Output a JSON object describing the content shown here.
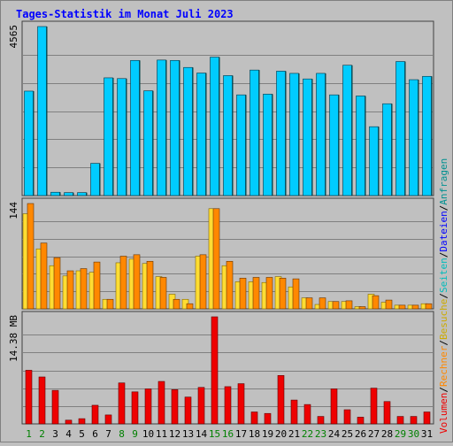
{
  "colors": {
    "background": "#c0c0c0",
    "title": "#0000ff",
    "green_day": "#008000",
    "normal_day": "#000000",
    "grid": "#808080",
    "files": "#00ccff",
    "pages": "#ffdd33",
    "visits": "#ff8800",
    "volume": "#ee0000"
  },
  "chart_data": {
    "type": "bar",
    "title": "Tages-Statistik im Monat Juli 2023",
    "categories": [
      "1",
      "2",
      "3",
      "4",
      "5",
      "6",
      "7",
      "8",
      "9",
      "10",
      "11",
      "12",
      "13",
      "14",
      "15",
      "16",
      "17",
      "18",
      "19",
      "20",
      "21",
      "22",
      "23",
      "24",
      "25",
      "26",
      "27",
      "28",
      "29",
      "30",
      "31"
    ],
    "green_days": [
      "1",
      "2",
      "8",
      "9",
      "15",
      "16",
      "22",
      "23",
      "29",
      "30"
    ],
    "panels": [
      {
        "id": "top",
        "axis_max_label": "4565",
        "ymax": 4565,
        "series": [
          {
            "name": "Anfragen",
            "color": "#009090",
            "values": [
              2821,
              4565,
              90,
              80,
              80,
              870,
              3180,
              3160,
              3650,
              2830,
              3660,
              3650,
              3460,
              3310,
              3740,
              3240,
              2720,
              3390,
              2740,
              3360,
              3300,
              3150,
              3300,
              2720,
              3520,
              2690,
              1860,
              2480,
              3620,
              3130,
              3220
            ]
          },
          {
            "name": "Dateien",
            "color": "#00ccff",
            "values": [
              2821,
              4565,
              90,
              80,
              80,
              870,
              3180,
              3160,
              3650,
              2830,
              3660,
              3650,
              3460,
              3310,
              3740,
              3240,
              2720,
              3390,
              2740,
              3360,
              3300,
              3150,
              3300,
              2720,
              3520,
              2690,
              1860,
              2480,
              3620,
              3130,
              3220
            ]
          }
        ]
      },
      {
        "id": "middle",
        "axis_max_label": "144",
        "ymax": 144,
        "series": [
          {
            "name": "Seiten",
            "color": "#ffdd33",
            "values": [
              130,
              82,
              59,
              45,
              52,
              50,
              13,
              63,
              68,
              62,
              44,
              20,
              13,
              72,
              137,
              59,
              37,
              37,
              36,
              44,
              30,
              15,
              6,
              10,
              10,
              3,
              20,
              9,
              5,
              5,
              7
            ]
          },
          {
            "name": "Besuche",
            "color": "#ff8800",
            "values": [
              144,
              90,
              70,
              52,
              55,
              64,
              13,
              72,
              74,
              65,
              43,
              13,
              7,
              74,
              137,
              65,
              42,
              43,
              43,
              42,
              41,
              15,
              15,
              10,
              11,
              3,
              18,
              12,
              5,
              5,
              7
            ]
          }
        ]
      },
      {
        "id": "bottom",
        "axis_max_label": "14.38 MB",
        "ymax": 14.38,
        "series": [
          {
            "name": "Rechner",
            "color": "#ff8800",
            "values": []
          },
          {
            "name": "Volumen",
            "color": "#ee0000",
            "values": [
              7.2,
              6.3,
              4.5,
              0.5,
              0.7,
              2.5,
              1.2,
              5.5,
              4.3,
              4.7,
              5.7,
              4.6,
              3.6,
              4.9,
              14.38,
              5.0,
              5.4,
              1.6,
              1.4,
              6.5,
              3.2,
              2.6,
              1.0,
              4.7,
              1.9,
              0.9,
              4.8,
              3.0,
              1.0,
              1.0,
              1.6
            ]
          }
        ]
      }
    ],
    "legend_placement": "right-vertical"
  }
}
